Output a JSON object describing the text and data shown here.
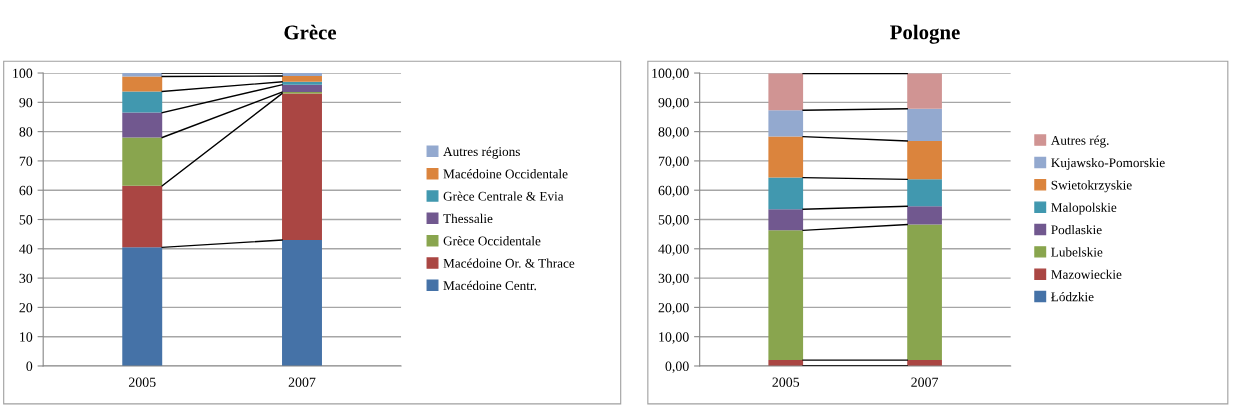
{
  "chart_data": [
    {
      "type": "bar",
      "title": "Grèce",
      "stacked": true,
      "categories": [
        "2005",
        "2007"
      ],
      "ylim": [
        0,
        100
      ],
      "yticks": [
        0,
        10,
        20,
        30,
        40,
        50,
        60,
        70,
        80,
        90,
        100
      ],
      "grid": "y",
      "legend": "right",
      "series": [
        {
          "name": "Macédoine Centr.",
          "color": "#4572a7",
          "values": [
            40.5,
            43
          ]
        },
        {
          "name": "Macédoine Or. & Thrace",
          "color": "#aa4643",
          "values": [
            21,
            50
          ]
        },
        {
          "name": "Grèce Occidentale",
          "color": "#89a54e",
          "values": [
            16.5,
            0.5
          ]
        },
        {
          "name": "Thessalie",
          "color": "#71588f",
          "values": [
            8.5,
            2.5
          ]
        },
        {
          "name": "Grèce Centrale & Evia",
          "color": "#4198af",
          "values": [
            7.2,
            1
          ]
        },
        {
          "name": "Macédoine Occidentale",
          "color": "#db843d",
          "values": [
            5.1,
            2
          ]
        },
        {
          "name": "Autres régions",
          "color": "#93a9cf",
          "values": [
            1.2,
            1
          ]
        }
      ]
    },
    {
      "type": "bar",
      "title": "Pologne",
      "stacked": true,
      "categories": [
        "2005",
        "2007"
      ],
      "ylim": [
        0,
        100
      ],
      "yticks": [
        {
          "value": 0,
          "label": "0,00"
        },
        {
          "value": 10,
          "label": "10,00"
        },
        {
          "value": 20,
          "label": "20,00"
        },
        {
          "value": 30,
          "label": "30,00"
        },
        {
          "value": 40,
          "label": "40,00"
        },
        {
          "value": 50,
          "label": "50,00"
        },
        {
          "value": 60,
          "label": "60,00"
        },
        {
          "value": 70,
          "label": "70,00"
        },
        {
          "value": 80,
          "label": "80,00"
        },
        {
          "value": 90,
          "label": "90,00"
        },
        {
          "value": 100,
          "label": "100,00"
        }
      ],
      "grid": "y",
      "legend": "right",
      "series": [
        {
          "name": "Łódzkie",
          "color": "#4572a7",
          "values": [
            null,
            null
          ]
        },
        {
          "name": "Mazowieckie",
          "color": "#aa4643",
          "values": [
            2.0,
            2.0
          ]
        },
        {
          "name": "Lubelskie",
          "color": "#89a54e",
          "values": [
            44.3,
            46.3
          ]
        },
        {
          "name": "Podlaskie",
          "color": "#71588f",
          "values": [
            7.2,
            6.2
          ]
        },
        {
          "name": "Malopolskie",
          "color": "#4198af",
          "values": [
            10.8,
            9.2
          ]
        },
        {
          "name": "Swietokrzyskie",
          "color": "#db843d",
          "values": [
            14,
            13.1
          ]
        },
        {
          "name": "Kujawsko-Pomorskie",
          "color": "#93a9cf",
          "values": [
            9,
            11
          ]
        },
        {
          "name": "Autres rég.",
          "color": "#d09493",
          "values": [
            12.5,
            12
          ]
        }
      ]
    }
  ]
}
